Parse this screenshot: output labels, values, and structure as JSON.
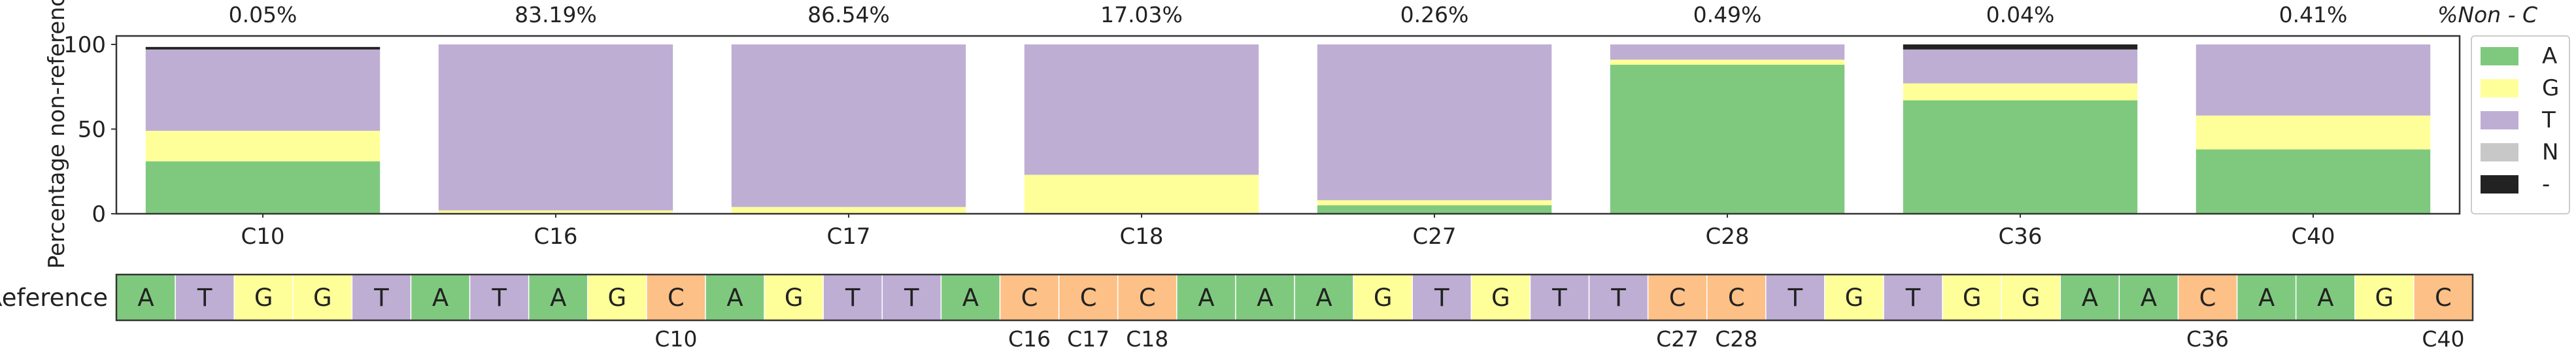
{
  "chart_data": {
    "type": "bar",
    "stacked": true,
    "ylabel": "Percentage non-reference",
    "ylim": [
      0,
      105
    ],
    "yticks": [
      0,
      50,
      100
    ],
    "grid": false,
    "legend_position": "right",
    "top_axis_label": "%Non - C",
    "categories": [
      "C10",
      "C16",
      "C17",
      "C18",
      "C27",
      "C28",
      "C36",
      "C40"
    ],
    "nonref_percent_labels": [
      "0.05%",
      "83.19%",
      "86.54%",
      "17.03%",
      "0.26%",
      "0.49%",
      "0.04%",
      "0.41%"
    ],
    "series": [
      {
        "name": "A",
        "color": "#7fc97f",
        "values": [
          31,
          0,
          0,
          0,
          5,
          88,
          67,
          38
        ]
      },
      {
        "name": "G",
        "color": "#ffff99",
        "values": [
          18,
          2,
          4,
          23,
          3,
          3,
          10,
          20
        ]
      },
      {
        "name": "T",
        "color": "#beaed4",
        "values": [
          48,
          98,
          96,
          77,
          92,
          9,
          20,
          42
        ]
      },
      {
        "name": "N",
        "color": "#c8c8c8",
        "values": [
          0,
          0,
          0,
          0,
          0,
          0,
          0,
          0
        ]
      },
      {
        "name": "-",
        "color": "#222222",
        "values": [
          1.5,
          0,
          0,
          0,
          0,
          0,
          3,
          0
        ]
      }
    ]
  },
  "reference_track": {
    "label": "Reference",
    "sequence": [
      "A",
      "T",
      "G",
      "G",
      "T",
      "A",
      "T",
      "A",
      "G",
      "C",
      "A",
      "G",
      "T",
      "T",
      "A",
      "C",
      "C",
      "C",
      "A",
      "A",
      "A",
      "G",
      "T",
      "G",
      "T",
      "T",
      "C",
      "C",
      "T",
      "G",
      "T",
      "G",
      "G",
      "A",
      "A",
      "C",
      "A",
      "A",
      "G",
      "C"
    ],
    "colors": {
      "A": "#7fc97f",
      "T": "#beaed4",
      "G": "#ffff99",
      "C": "#fdc086"
    },
    "annotations": [
      {
        "label": "C10",
        "index": 9
      },
      {
        "label": "C16",
        "index": 15
      },
      {
        "label": "C17",
        "index": 16
      },
      {
        "label": "C18",
        "index": 17
      },
      {
        "label": "C27",
        "index": 26
      },
      {
        "label": "C28",
        "index": 27
      },
      {
        "label": "C36",
        "index": 35
      },
      {
        "label": "C40",
        "index": 39
      }
    ]
  }
}
